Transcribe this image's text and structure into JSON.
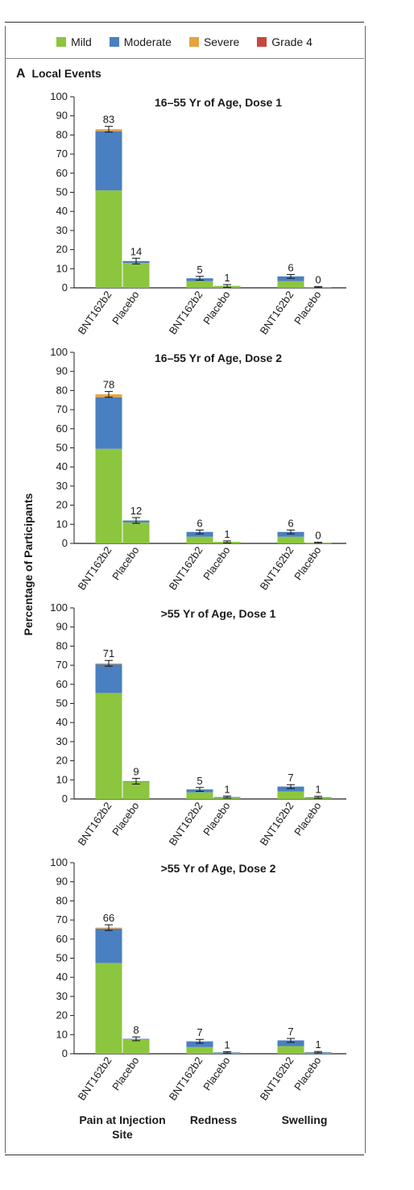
{
  "legend": {
    "items": [
      {
        "label": "Mild",
        "color": "#8cc63f"
      },
      {
        "label": "Moderate",
        "color": "#4a7fc1"
      },
      {
        "label": "Severe",
        "color": "#e8a33d"
      },
      {
        "label": "Grade 4",
        "color": "#c9463d"
      }
    ]
  },
  "panel": {
    "letter": "A",
    "title": "Local Events"
  },
  "ylabel": "Percentage of Participants",
  "categories": [
    "Pain at Injection Site",
    "Redness",
    "Swelling"
  ],
  "category_display": {
    "pain_line1": "Pain at Injection",
    "pain_line2": "Site",
    "redness": "Redness",
    "swelling": "Swelling"
  },
  "chart_data": [
    {
      "type": "bar",
      "title": "16–55 Yr of Age, Dose 1",
      "ylim": [
        0,
        100
      ],
      "yticks": [
        0,
        10,
        20,
        30,
        40,
        50,
        60,
        70,
        80,
        90,
        100
      ],
      "groups": [
        "Pain at Injection Site",
        "Redness",
        "Swelling"
      ],
      "bar_labels": [
        "BNT162b2",
        "Placebo"
      ],
      "bars": [
        {
          "group": 0,
          "label": "BNT162b2",
          "total": 83,
          "mild": 51,
          "moderate": 31,
          "severe": 1,
          "grade4": 0,
          "err": 1.5
        },
        {
          "group": 0,
          "label": "Placebo",
          "total": 14,
          "mild": 13,
          "moderate": 1,
          "severe": 0,
          "grade4": 0,
          "err": 1.5
        },
        {
          "group": 1,
          "label": "BNT162b2",
          "total": 5,
          "mild": 3.5,
          "moderate": 1.5,
          "severe": 0,
          "grade4": 0,
          "err": 1
        },
        {
          "group": 1,
          "label": "Placebo",
          "total": 1,
          "mild": 1,
          "moderate": 0,
          "severe": 0,
          "grade4": 0,
          "err": 0.7
        },
        {
          "group": 2,
          "label": "BNT162b2",
          "total": 6,
          "mild": 3.5,
          "moderate": 2.5,
          "severe": 0,
          "grade4": 0,
          "err": 1
        },
        {
          "group": 2,
          "label": "Placebo",
          "total": 0,
          "mild": 0.4,
          "moderate": 0,
          "severe": 0,
          "grade4": 0,
          "err": 0.3
        }
      ]
    },
    {
      "type": "bar",
      "title": "16–55 Yr of Age, Dose 2",
      "ylim": [
        0,
        100
      ],
      "yticks": [
        0,
        10,
        20,
        30,
        40,
        50,
        60,
        70,
        80,
        90,
        100
      ],
      "groups": [
        "Pain at Injection Site",
        "Redness",
        "Swelling"
      ],
      "bar_labels": [
        "BNT162b2",
        "Placebo"
      ],
      "bars": [
        {
          "group": 0,
          "label": "BNT162b2",
          "total": 78,
          "mild": 49.5,
          "moderate": 27,
          "severe": 1.5,
          "grade4": 0,
          "err": 1.5
        },
        {
          "group": 0,
          "label": "Placebo",
          "total": 12,
          "mild": 11,
          "moderate": 1,
          "severe": 0,
          "grade4": 0,
          "err": 1.5
        },
        {
          "group": 1,
          "label": "BNT162b2",
          "total": 6,
          "mild": 3.5,
          "moderate": 2.5,
          "severe": 0,
          "grade4": 0,
          "err": 1
        },
        {
          "group": 1,
          "label": "Placebo",
          "total": 1,
          "mild": 0.8,
          "moderate": 0,
          "severe": 0,
          "grade4": 0,
          "err": 0.5
        },
        {
          "group": 2,
          "label": "BNT162b2",
          "total": 6,
          "mild": 3.5,
          "moderate": 2.5,
          "severe": 0,
          "grade4": 0,
          "err": 1
        },
        {
          "group": 2,
          "label": "Placebo",
          "total": 0,
          "mild": 0.3,
          "moderate": 0,
          "severe": 0,
          "grade4": 0,
          "err": 0.3
        }
      ]
    },
    {
      "type": "bar",
      "title": ">55 Yr of Age, Dose 1",
      "ylim": [
        0,
        100
      ],
      "yticks": [
        0,
        10,
        20,
        30,
        40,
        50,
        60,
        70,
        80,
        90,
        100
      ],
      "groups": [
        "Pain at Injection Site",
        "Redness",
        "Swelling"
      ],
      "bar_labels": [
        "BNT162b2",
        "Placebo"
      ],
      "bars": [
        {
          "group": 0,
          "label": "BNT162b2",
          "total": 71,
          "mild": 55.5,
          "moderate": 15,
          "severe": 0.5,
          "grade4": 0,
          "err": 1.5
        },
        {
          "group": 0,
          "label": "Placebo",
          "total": 9,
          "mild": 9,
          "moderate": 0.3,
          "severe": 0,
          "grade4": 0,
          "err": 1.5
        },
        {
          "group": 1,
          "label": "BNT162b2",
          "total": 5,
          "mild": 3.5,
          "moderate": 1.5,
          "severe": 0,
          "grade4": 0,
          "err": 1
        },
        {
          "group": 1,
          "label": "Placebo",
          "total": 1,
          "mild": 0.8,
          "moderate": 0.2,
          "severe": 0,
          "grade4": 0,
          "err": 0.5
        },
        {
          "group": 2,
          "label": "BNT162b2",
          "total": 7,
          "mild": 4,
          "moderate": 2.5,
          "severe": 0,
          "grade4": 0,
          "err": 1
        },
        {
          "group": 2,
          "label": "Placebo",
          "total": 1,
          "mild": 0.7,
          "moderate": 0.2,
          "severe": 0,
          "grade4": 0,
          "err": 0.5
        }
      ]
    },
    {
      "type": "bar",
      "title": ">55 Yr of Age, Dose 2",
      "ylim": [
        0,
        100
      ],
      "yticks": [
        0,
        10,
        20,
        30,
        40,
        50,
        60,
        70,
        80,
        90,
        100
      ],
      "groups": [
        "Pain at Injection Site",
        "Redness",
        "Swelling"
      ],
      "bar_labels": [
        "BNT162b2",
        "Placebo"
      ],
      "bars": [
        {
          "group": 0,
          "label": "BNT162b2",
          "total": 66,
          "mild": 47.5,
          "moderate": 18,
          "severe": 0.5,
          "grade4": 0,
          "err": 1.5
        },
        {
          "group": 0,
          "label": "Placebo",
          "total": 8,
          "mild": 7.5,
          "moderate": 0.3,
          "severe": 0,
          "grade4": 0,
          "err": 1
        },
        {
          "group": 1,
          "label": "BNT162b2",
          "total": 7,
          "mild": 3.5,
          "moderate": 3,
          "severe": 0,
          "grade4": 0,
          "err": 1
        },
        {
          "group": 1,
          "label": "Placebo",
          "total": 1,
          "mild": 0.5,
          "moderate": 0.2,
          "severe": 0,
          "grade4": 0,
          "err": 0.4
        },
        {
          "group": 2,
          "label": "BNT162b2",
          "total": 7,
          "mild": 4,
          "moderate": 3,
          "severe": 0,
          "grade4": 0,
          "err": 1
        },
        {
          "group": 2,
          "label": "Placebo",
          "total": 1,
          "mild": 0.6,
          "moderate": 0.2,
          "severe": 0,
          "grade4": 0,
          "err": 0.4
        }
      ]
    }
  ]
}
